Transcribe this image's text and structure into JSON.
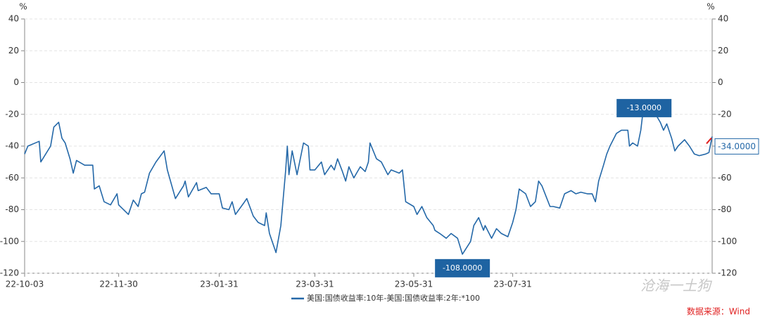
{
  "chart_data": {
    "type": "line",
    "y_unit": "%",
    "y2_unit": "%",
    "legend": "美国:国债收益率:10年-美国:国债收益率:2年:*100",
    "source": "数据来源：Wind",
    "watermark": "沧海一土狗",
    "xlim": [
      "22-10-03",
      "23-12-01"
    ],
    "xticks": [
      "22-10-03",
      "22-11-30",
      "23-01-31",
      "23-03-31",
      "23-05-31",
      "23-07-31"
    ],
    "ylim": [
      -120,
      40
    ],
    "yticks": [
      40,
      20,
      0,
      -20,
      -40,
      -60,
      -80,
      -100,
      -120
    ],
    "y2lim": [
      -120,
      40
    ],
    "y2ticks": [
      40,
      20,
      0,
      -20,
      -40,
      -60,
      -80,
      -100,
      -120
    ],
    "grid": true,
    "x": [
      "22-10-03",
      "22-10-05",
      "22-10-12",
      "22-10-13",
      "22-10-19",
      "22-10-21",
      "22-10-24",
      "22-10-26",
      "22-10-28",
      "22-10-31",
      "22-11-02",
      "22-11-04",
      "22-11-09",
      "22-11-14",
      "22-11-15",
      "22-11-18",
      "22-11-21",
      "22-11-25",
      "22-11-29",
      "22-11-30",
      "22-12-06",
      "22-12-09",
      "22-12-12",
      "22-12-14",
      "22-12-16",
      "22-12-19",
      "22-12-23",
      "22-12-28",
      "22-12-30",
      "23-01-04",
      "23-01-09",
      "23-01-10",
      "23-01-12",
      "23-01-17",
      "23-01-18",
      "23-01-23",
      "23-01-26",
      "23-01-31",
      "23-02-02",
      "23-02-06",
      "23-02-08",
      "23-02-10",
      "23-02-15",
      "23-02-17",
      "23-02-21",
      "23-02-24",
      "23-02-28",
      "23-03-01",
      "23-03-03",
      "23-03-07",
      "23-03-10",
      "23-03-13",
      "23-03-14",
      "23-03-15",
      "23-03-17",
      "23-03-20",
      "23-03-22",
      "23-03-24",
      "23-03-27",
      "23-03-28",
      "23-03-31",
      "23-04-04",
      "23-04-06",
      "23-04-10",
      "23-04-12",
      "23-04-14",
      "23-04-17",
      "23-04-19",
      "23-04-21",
      "23-04-24",
      "23-04-28",
      "23-05-01",
      "23-05-03",
      "23-05-04",
      "23-05-08",
      "23-05-11",
      "23-05-15",
      "23-05-17",
      "23-05-22",
      "23-05-24",
      "23-05-26",
      "23-05-31",
      "23-06-02",
      "23-06-05",
      "23-06-08",
      "23-06-12",
      "23-06-13",
      "23-06-16",
      "23-06-20",
      "23-06-23",
      "23-06-27",
      "23-06-30",
      "23-07-05",
      "23-07-07",
      "23-07-10",
      "23-07-13",
      "23-07-14",
      "23-07-18",
      "23-07-21",
      "23-07-24",
      "23-07-28",
      "23-07-31",
      "23-08-02",
      "23-08-04",
      "23-08-08",
      "23-08-11",
      "23-08-14",
      "23-08-16",
      "23-08-18",
      "23-08-23",
      "23-08-25",
      "23-08-29",
      "23-09-01",
      "23-09-05",
      "23-09-08",
      "23-09-11",
      "23-09-15",
      "23-09-18",
      "23-09-20",
      "23-09-22",
      "23-09-25",
      "23-09-27",
      "23-09-29",
      "23-10-03",
      "23-10-06",
      "23-10-10",
      "23-10-11",
      "23-10-13",
      "23-10-16",
      "23-10-18",
      "23-10-20",
      "23-10-23",
      "23-10-26",
      "23-10-30",
      "23-11-01",
      "23-11-03",
      "23-11-06",
      "23-11-08",
      "23-11-10",
      "23-11-14",
      "23-11-17",
      "23-11-20",
      "23-11-23",
      "23-11-27",
      "23-11-29",
      "23-12-01"
    ],
    "series": [
      {
        "name": "美国:国债收益率:10年-美国:国债收益率:2年:*100",
        "color": "#2468a8",
        "values": [
          -45,
          -40,
          -37,
          -50,
          -40,
          -28,
          -25,
          -35,
          -38,
          -48,
          -57,
          -49,
          -52,
          -52,
          -67,
          -65,
          -75,
          -77,
          -70,
          -77,
          -83,
          -74,
          -78,
          -70,
          -69,
          -57,
          -50,
          -43,
          -55,
          -73,
          -65,
          -62,
          -72,
          -63,
          -68,
          -66,
          -70,
          -70,
          -79,
          -80,
          -75,
          -83,
          -76,
          -73,
          -84,
          -88,
          -90,
          -82,
          -95,
          -107,
          -90,
          -55,
          -40,
          -58,
          -43,
          -58,
          -48,
          -38,
          -40,
          -55,
          -55,
          -50,
          -58,
          -52,
          -55,
          -48,
          -56,
          -62,
          -53,
          -60,
          -53,
          -56,
          -50,
          -38,
          -48,
          -50,
          -58,
          -55,
          -57,
          -55,
          -75,
          -78,
          -83,
          -78,
          -85,
          -90,
          -93,
          -95,
          -98,
          -95,
          -98,
          -108,
          -100,
          -90,
          -85,
          -93,
          -90,
          -98,
          -92,
          -95,
          -97,
          -88,
          -80,
          -67,
          -70,
          -78,
          -75,
          -62,
          -65,
          -78,
          -78,
          -79,
          -70,
          -68,
          -70,
          -69,
          -70,
          -70,
          -75,
          -62,
          -52,
          -45,
          -40,
          -32,
          -30,
          -30,
          -40,
          -38,
          -40,
          -30,
          -13,
          -20,
          -18,
          -25,
          -30,
          -26,
          -35,
          -43,
          -40,
          -36,
          -40,
          -45,
          -46,
          -45,
          -44,
          -34
        ],
        "value_labels": [
          null,
          null,
          null,
          null,
          null,
          null,
          null,
          null,
          null,
          null,
          null,
          null,
          null,
          null,
          null,
          null,
          null,
          null,
          null,
          null,
          null,
          null,
          null,
          null,
          null,
          null,
          null,
          null,
          null,
          null,
          null,
          null,
          null,
          null,
          null,
          null,
          null,
          null,
          null,
          null,
          null,
          null,
          null,
          null,
          null,
          null,
          null,
          null,
          null,
          null,
          null,
          null,
          null,
          null,
          null,
          null,
          null,
          null,
          null,
          null,
          null,
          null,
          null,
          null,
          null,
          null,
          null,
          null,
          null,
          null,
          null,
          null,
          null,
          null,
          null,
          null,
          null,
          null,
          null,
          null,
          null,
          null,
          null,
          null,
          null,
          null,
          null,
          null,
          null,
          null,
          null,
          "-108.0000",
          null,
          null,
          null,
          null,
          null,
          null,
          null,
          null,
          null,
          null,
          null,
          null,
          null,
          null,
          null,
          null,
          null,
          null,
          null,
          null,
          null,
          null,
          null,
          null,
          null,
          null,
          null,
          null,
          null,
          null,
          null,
          null,
          null,
          null,
          null,
          null,
          null,
          null,
          "-13.0000",
          null,
          null,
          null,
          null,
          null,
          null,
          null,
          null,
          null,
          null,
          null,
          null,
          null,
          null,
          "-34.0000"
        ]
      }
    ]
  }
}
